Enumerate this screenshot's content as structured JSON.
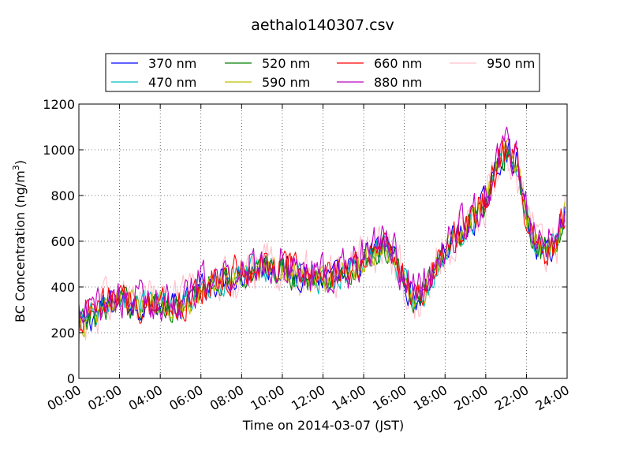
{
  "chart_data": {
    "type": "line",
    "title": "aethalo140307.csv",
    "xlabel": "Time on 2014-03-07 (JST)",
    "ylabel_main": "BC Concentration (ng/m",
    "ylabel_sup": "3",
    "ylabel_end": ")",
    "xlim": [
      0,
      24
    ],
    "ylim": [
      0,
      1200
    ],
    "grid": true,
    "legend_position": "top",
    "x_ticks": [
      0,
      2,
      4,
      6,
      8,
      10,
      12,
      14,
      16,
      18,
      20,
      22,
      24
    ],
    "x_tick_labels": [
      "00:00",
      "02:00",
      "04:00",
      "06:00",
      "08:00",
      "10:00",
      "12:00",
      "14:00",
      "16:00",
      "18:00",
      "20:00",
      "22:00",
      "24:00"
    ],
    "y_ticks": [
      0,
      200,
      400,
      600,
      800,
      1000,
      1200
    ],
    "y_tick_labels": [
      "0",
      "200",
      "400",
      "600",
      "800",
      "1000",
      "1200"
    ],
    "x_hours": [
      0,
      0.5,
      1,
      1.5,
      2,
      2.5,
      3,
      3.5,
      4,
      4.5,
      5,
      5.5,
      6,
      6.5,
      7,
      7.5,
      8,
      8.5,
      9,
      9.5,
      10,
      10.5,
      11,
      11.5,
      12,
      12.5,
      13,
      13.5,
      14,
      14.5,
      15,
      15.5,
      16,
      16.5,
      17,
      17.5,
      18,
      18.5,
      19,
      19.5,
      20,
      20.5,
      21,
      21.5,
      22,
      22.5,
      23,
      23.5,
      23.9
    ],
    "base_values": [
      230,
      260,
      290,
      330,
      340,
      335,
      315,
      320,
      330,
      320,
      310,
      340,
      390,
      420,
      430,
      440,
      460,
      470,
      480,
      490,
      480,
      460,
      450,
      445,
      430,
      440,
      450,
      480,
      520,
      560,
      580,
      550,
      420,
      340,
      380,
      480,
      560,
      620,
      650,
      700,
      780,
      900,
      1000,
      950,
      700,
      580,
      560,
      600,
      720
    ],
    "series": [
      {
        "name": "370 nm",
        "color": "#0000ff",
        "offset": 0
      },
      {
        "name": "470 nm",
        "color": "#00bfbf",
        "offset": 0
      },
      {
        "name": "520 nm",
        "color": "#008000",
        "offset": -5
      },
      {
        "name": "590 nm",
        "color": "#bfbf00",
        "offset": 0
      },
      {
        "name": "660 nm",
        "color": "#ff0000",
        "offset": 10
      },
      {
        "name": "880 nm",
        "color": "#bf00bf",
        "offset": 20
      },
      {
        "name": "950 nm",
        "color": "#ffc0cb",
        "offset": 10
      }
    ]
  }
}
